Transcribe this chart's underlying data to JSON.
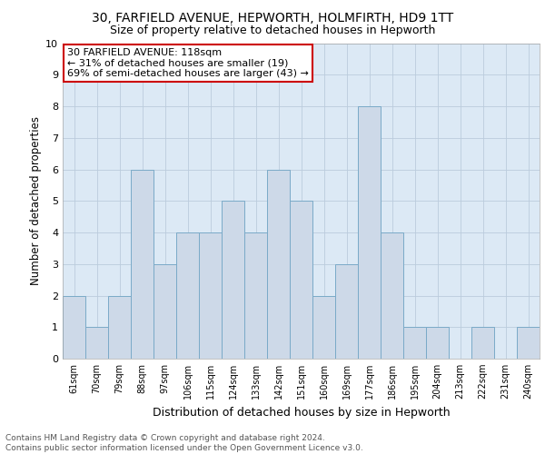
{
  "title": "30, FARFIELD AVENUE, HEPWORTH, HOLMFIRTH, HD9 1TT",
  "subtitle": "Size of property relative to detached houses in Hepworth",
  "xlabel": "Distribution of detached houses by size in Hepworth",
  "ylabel": "Number of detached properties",
  "categories": [
    "61sqm",
    "70sqm",
    "79sqm",
    "88sqm",
    "97sqm",
    "106sqm",
    "115sqm",
    "124sqm",
    "133sqm",
    "142sqm",
    "151sqm",
    "160sqm",
    "169sqm",
    "177sqm",
    "186sqm",
    "195sqm",
    "204sqm",
    "213sqm",
    "222sqm",
    "231sqm",
    "240sqm"
  ],
  "values": [
    2,
    1,
    2,
    6,
    3,
    4,
    4,
    5,
    4,
    6,
    5,
    2,
    3,
    8,
    4,
    1,
    1,
    0,
    1,
    0,
    1
  ],
  "bar_color": "#cdd9e8",
  "bar_edge_color": "#7aaac8",
  "annotation_text": "30 FARFIELD AVENUE: 118sqm\n← 31% of detached houses are smaller (19)\n69% of semi-detached houses are larger (43) →",
  "annotation_box_color": "#ffffff",
  "annotation_box_edge": "#cc0000",
  "ylim": [
    0,
    10
  ],
  "yticks": [
    0,
    1,
    2,
    3,
    4,
    5,
    6,
    7,
    8,
    9,
    10
  ],
  "grid_color": "#bbccdd",
  "bg_color": "#ffffff",
  "plot_bg_color": "#dce9f5",
  "footer": "Contains HM Land Registry data © Crown copyright and database right 2024.\nContains public sector information licensed under the Open Government Licence v3.0.",
  "title_fontsize": 10,
  "subtitle_fontsize": 9,
  "xlabel_fontsize": 9,
  "ylabel_fontsize": 8.5,
  "annotation_fontsize": 8,
  "footer_fontsize": 6.5
}
